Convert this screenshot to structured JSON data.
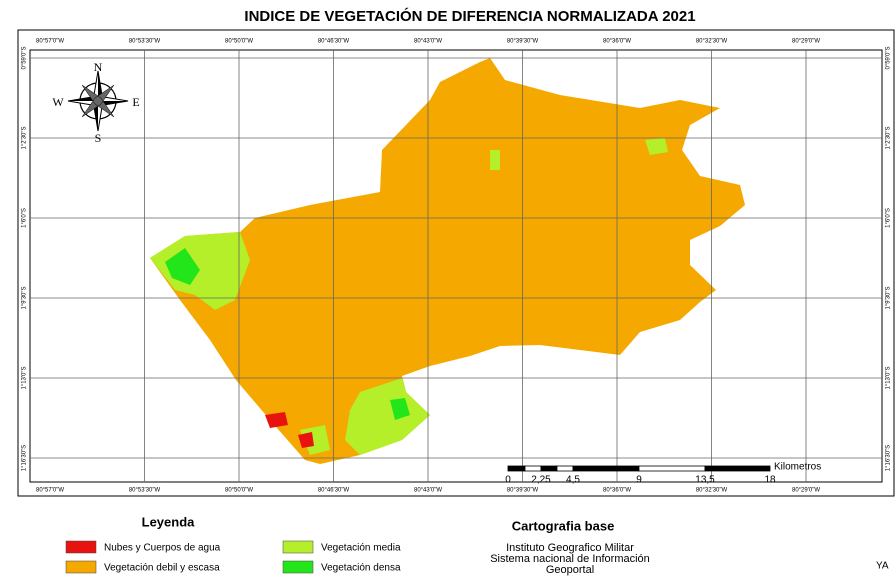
{
  "map": {
    "title": "INDICE DE VEGETACIÓN DE DIFERENCIA NORMALIZADA 2021",
    "lon_labels": [
      "80°57'0\"W",
      "80°53'30\"W",
      "80°50'0\"W",
      "80°46'30\"W",
      "80°43'0\"W",
      "80°39'30\"W",
      "80°36'0\"W",
      "80°32'30\"W",
      "80°29'0\"W"
    ],
    "lat_labels": [
      "0°59'0\"S",
      "1°2'30\"S",
      "1°6'0\"S",
      "1°9'30\"S",
      "1°13'0\"S",
      "1°16'30\"S"
    ],
    "compass": {
      "n": "N",
      "s": "S",
      "e": "E",
      "w": "W"
    },
    "scale_bar": {
      "labels": [
        "0",
        "2,25",
        "4,5",
        "9",
        "13,5",
        "18"
      ],
      "unit": "Kilometros"
    },
    "legend": {
      "title": "Leyenda",
      "items": [
        {
          "label": "Nubes y Cuerpos de agua",
          "color": "#e8120f"
        },
        {
          "label": "Vegetación debil y escasa",
          "color": "#f5a800"
        },
        {
          "label": "Vegetación media",
          "color": "#b4ef2a"
        },
        {
          "label": "Vegetación densa",
          "color": "#22e61a"
        }
      ]
    },
    "base_cartography": {
      "title": "Cartografia base",
      "lines": [
        "Instituto Geografico Militar",
        "Sistema nacional de Información",
        "Geoportal"
      ]
    },
    "corner_text": "YA"
  }
}
